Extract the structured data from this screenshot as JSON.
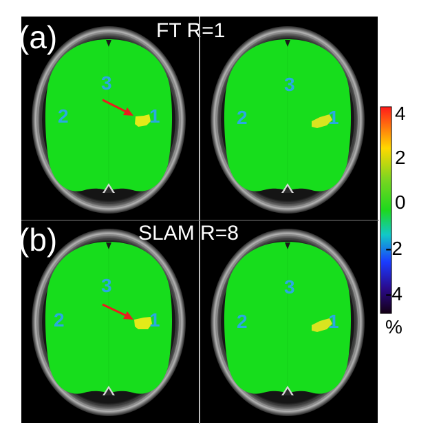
{
  "panels": [
    {
      "letter": "(a)",
      "title": "FT R=1",
      "images": [
        {
          "labels": [
            "1",
            "2",
            "3"
          ],
          "arrow": true
        },
        {
          "labels": [
            "1",
            "2",
            "3"
          ],
          "arrow": false
        }
      ]
    },
    {
      "letter": "(b)",
      "title": "SLAM R=8",
      "images": [
        {
          "labels": [
            "1",
            "2",
            "3"
          ],
          "arrow": true
        },
        {
          "labels": [
            "1",
            "2",
            "3"
          ],
          "arrow": false
        }
      ]
    }
  ],
  "colorbar": {
    "ticks": [
      "4",
      "2",
      "0",
      "-2",
      "-4"
    ],
    "unit": "%",
    "range": [
      -4.5,
      4.5
    ],
    "colors": [
      "#ff1a1a",
      "#ffd800",
      "#7cd620",
      "#1ed81e",
      "#12c8c8",
      "#1a3cff",
      "#2a0a8a",
      "#140014"
    ]
  },
  "colors": {
    "background": "#000000",
    "brain": "#17dd1c",
    "activation_left": "#e3ea19",
    "activation_right": "#d9e420",
    "labels": "#2aa9e0",
    "arrow": "#e81e1e"
  }
}
